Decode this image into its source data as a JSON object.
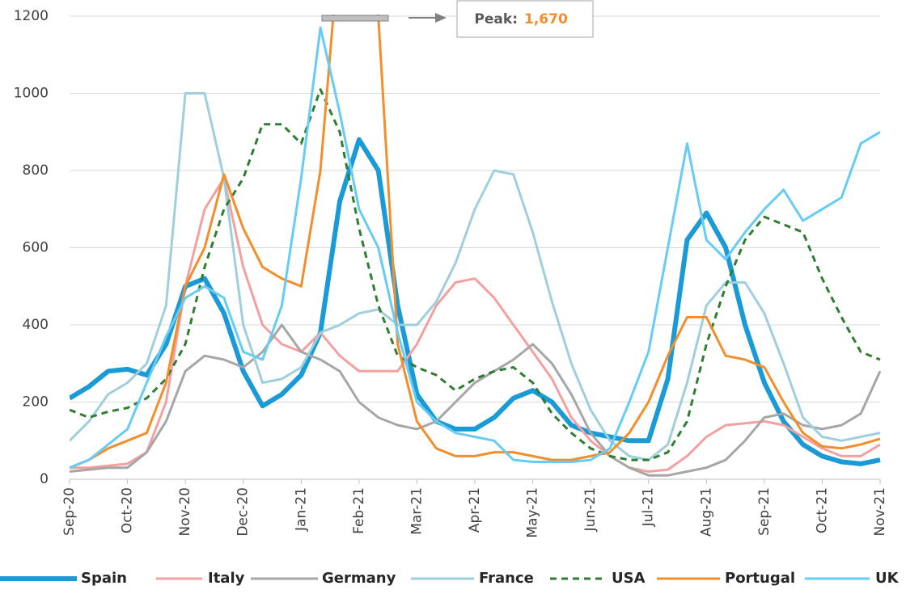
{
  "chart_data": {
    "type": "line",
    "x": [
      "Sep-20",
      null,
      null,
      "Oct-20",
      null,
      null,
      "Nov-20",
      null,
      null,
      "Dec-20",
      null,
      null,
      "Jan-21",
      null,
      null,
      "Feb-21",
      null,
      null,
      "Mar-21",
      null,
      null,
      "Apr-21",
      null,
      null,
      "May-21",
      null,
      null,
      "Jun-21",
      null,
      null,
      "Jul-21",
      null,
      null,
      "Aug-21",
      null,
      null,
      "Sep-21",
      null,
      null,
      "Oct-21",
      null,
      null,
      "Nov-21"
    ],
    "ylim": [
      0,
      1200
    ],
    "yticks": [
      0,
      200,
      400,
      600,
      800,
      1000,
      1200
    ],
    "grid": true,
    "annotation": {
      "label": "Peak:",
      "value": 1670,
      "value_label": "1,670"
    },
    "series": [
      {
        "name": "Spain",
        "color": "#1a9bd7",
        "line_width": 6,
        "dashed": false,
        "values": [
          210,
          240,
          280,
          285,
          270,
          350,
          500,
          520,
          430,
          280,
          190,
          220,
          270,
          380,
          720,
          880,
          800,
          450,
          220,
          150,
          130,
          130,
          160,
          210,
          230,
          200,
          140,
          120,
          110,
          100,
          100,
          260,
          620,
          690,
          600,
          400,
          250,
          150,
          90,
          60,
          45,
          40,
          50
        ]
      },
      {
        "name": "Italy",
        "color": "#f4a0a0",
        "line_width": 3,
        "dashed": false,
        "values": [
          30,
          30,
          35,
          40,
          70,
          200,
          500,
          700,
          780,
          550,
          400,
          350,
          330,
          380,
          320,
          280,
          280,
          280,
          350,
          450,
          510,
          520,
          470,
          400,
          330,
          260,
          160,
          100,
          60,
          30,
          20,
          25,
          60,
          110,
          140,
          145,
          150,
          140,
          110,
          80,
          60,
          60,
          90
        ]
      },
      {
        "name": "Germany",
        "color": "#a6a6a6",
        "line_width": 3,
        "dashed": false,
        "values": [
          20,
          25,
          30,
          30,
          70,
          150,
          280,
          320,
          310,
          290,
          330,
          400,
          330,
          310,
          280,
          200,
          160,
          140,
          130,
          150,
          200,
          250,
          280,
          310,
          350,
          300,
          220,
          120,
          60,
          30,
          10,
          10,
          20,
          30,
          50,
          100,
          160,
          170,
          140,
          130,
          140,
          170,
          280
        ]
      },
      {
        "name": "France",
        "color": "#9fcfdc",
        "line_width": 3,
        "dashed": false,
        "values": [
          100,
          150,
          220,
          250,
          300,
          450,
          1000,
          1000,
          780,
          400,
          250,
          260,
          290,
          380,
          400,
          430,
          440,
          400,
          400,
          460,
          560,
          700,
          800,
          790,
          640,
          460,
          300,
          180,
          100,
          60,
          50,
          90,
          250,
          450,
          510,
          510,
          430,
          300,
          160,
          110,
          100,
          110,
          120
        ]
      },
      {
        "name": "USA",
        "color": "#2e7d32",
        "line_width": 3,
        "dashed": true,
        "values": [
          180,
          160,
          175,
          185,
          210,
          260,
          350,
          550,
          700,
          780,
          920,
          920,
          870,
          1010,
          900,
          650,
          450,
          320,
          290,
          270,
          230,
          260,
          280,
          290,
          250,
          170,
          120,
          80,
          60,
          50,
          50,
          70,
          150,
          350,
          500,
          620,
          680,
          660,
          640,
          520,
          420,
          330,
          310
        ]
      },
      {
        "name": "Portugal",
        "color": "#f28e2b",
        "line_width": 3,
        "dashed": false,
        "values": [
          30,
          50,
          80,
          100,
          120,
          250,
          500,
          600,
          790,
          650,
          550,
          520,
          500,
          800,
          1400,
          1670,
          1200,
          350,
          150,
          80,
          60,
          60,
          70,
          70,
          60,
          50,
          50,
          60,
          70,
          120,
          200,
          320,
          420,
          420,
          320,
          310,
          290,
          200,
          120,
          85,
          80,
          90,
          105
        ]
      },
      {
        "name": "UK",
        "color": "#66ccf5",
        "line_width": 3,
        "dashed": false,
        "values": [
          30,
          50,
          90,
          130,
          250,
          370,
          470,
          500,
          470,
          330,
          310,
          450,
          780,
          1170,
          950,
          700,
          600,
          380,
          200,
          150,
          120,
          110,
          100,
          50,
          45,
          45,
          45,
          50,
          80,
          200,
          330,
          600,
          870,
          620,
          570,
          640,
          700,
          750,
          670,
          700,
          730,
          870,
          900
        ]
      }
    ]
  }
}
